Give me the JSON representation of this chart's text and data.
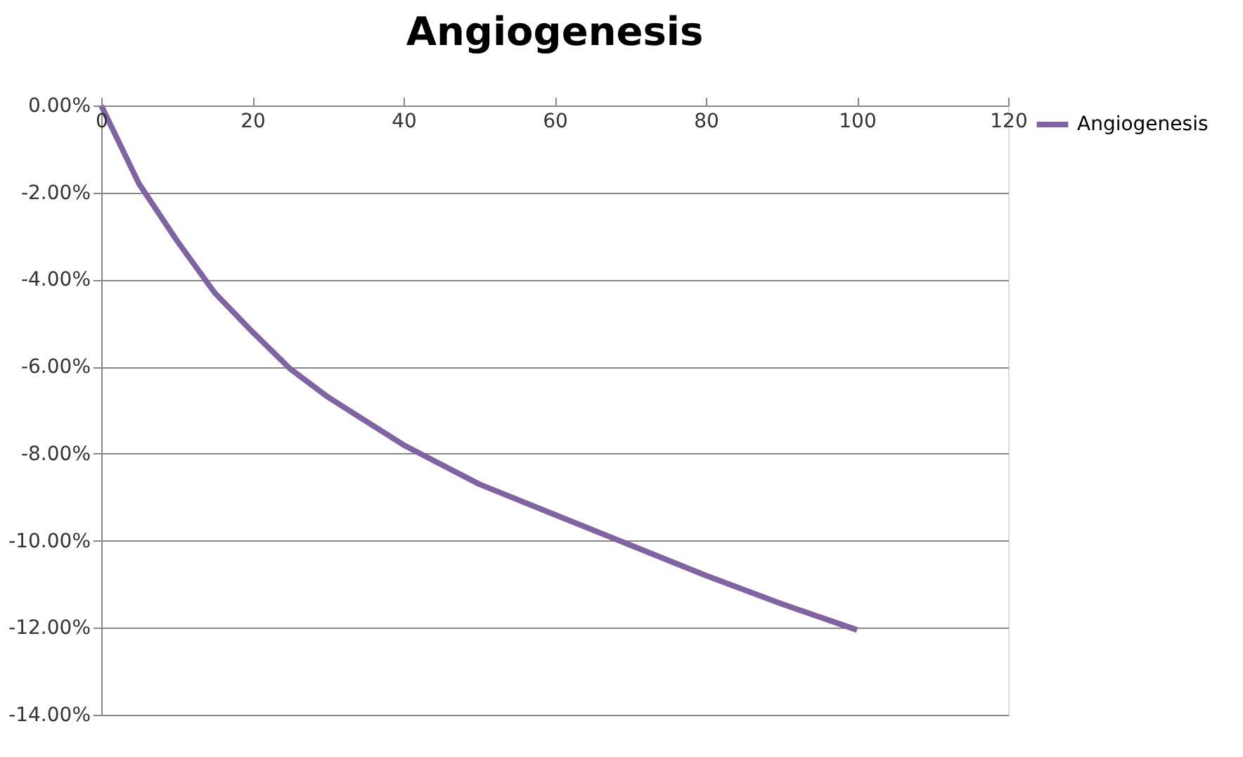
{
  "chart_data": {
    "type": "line",
    "title": "Angiogenesis",
    "series": [
      {
        "name": "Angiogenesis",
        "color": "#8064a2",
        "x": [
          0,
          5,
          10,
          15,
          20,
          25,
          30,
          40,
          50,
          60,
          70,
          80,
          90,
          100
        ],
        "values": [
          0,
          -1.8,
          -3.1,
          -4.3,
          -5.2,
          -6.05,
          -6.7,
          -7.8,
          -8.7,
          -9.4,
          -10.1,
          -10.8,
          -11.45,
          -12.05
        ]
      }
    ],
    "xlim": [
      0,
      120
    ],
    "xticks": [
      0,
      20,
      40,
      60,
      80,
      100,
      120
    ],
    "ylim": [
      -14,
      0
    ],
    "yticks": [
      {
        "value": -14,
        "label": "-14.00%"
      },
      {
        "value": -12,
        "label": "-12.00%"
      },
      {
        "value": -10,
        "label": "-10.00%"
      },
      {
        "value": -8,
        "label": "-8.00%"
      },
      {
        "value": -6,
        "label": "-6.00%"
      },
      {
        "value": -4,
        "label": "-4.00%"
      },
      {
        "value": -2,
        "label": "-2.00%"
      },
      {
        "value": 0,
        "label": "0.00%"
      }
    ],
    "grid": "y",
    "legend": "right",
    "marker": "none",
    "line_style": "solid"
  }
}
